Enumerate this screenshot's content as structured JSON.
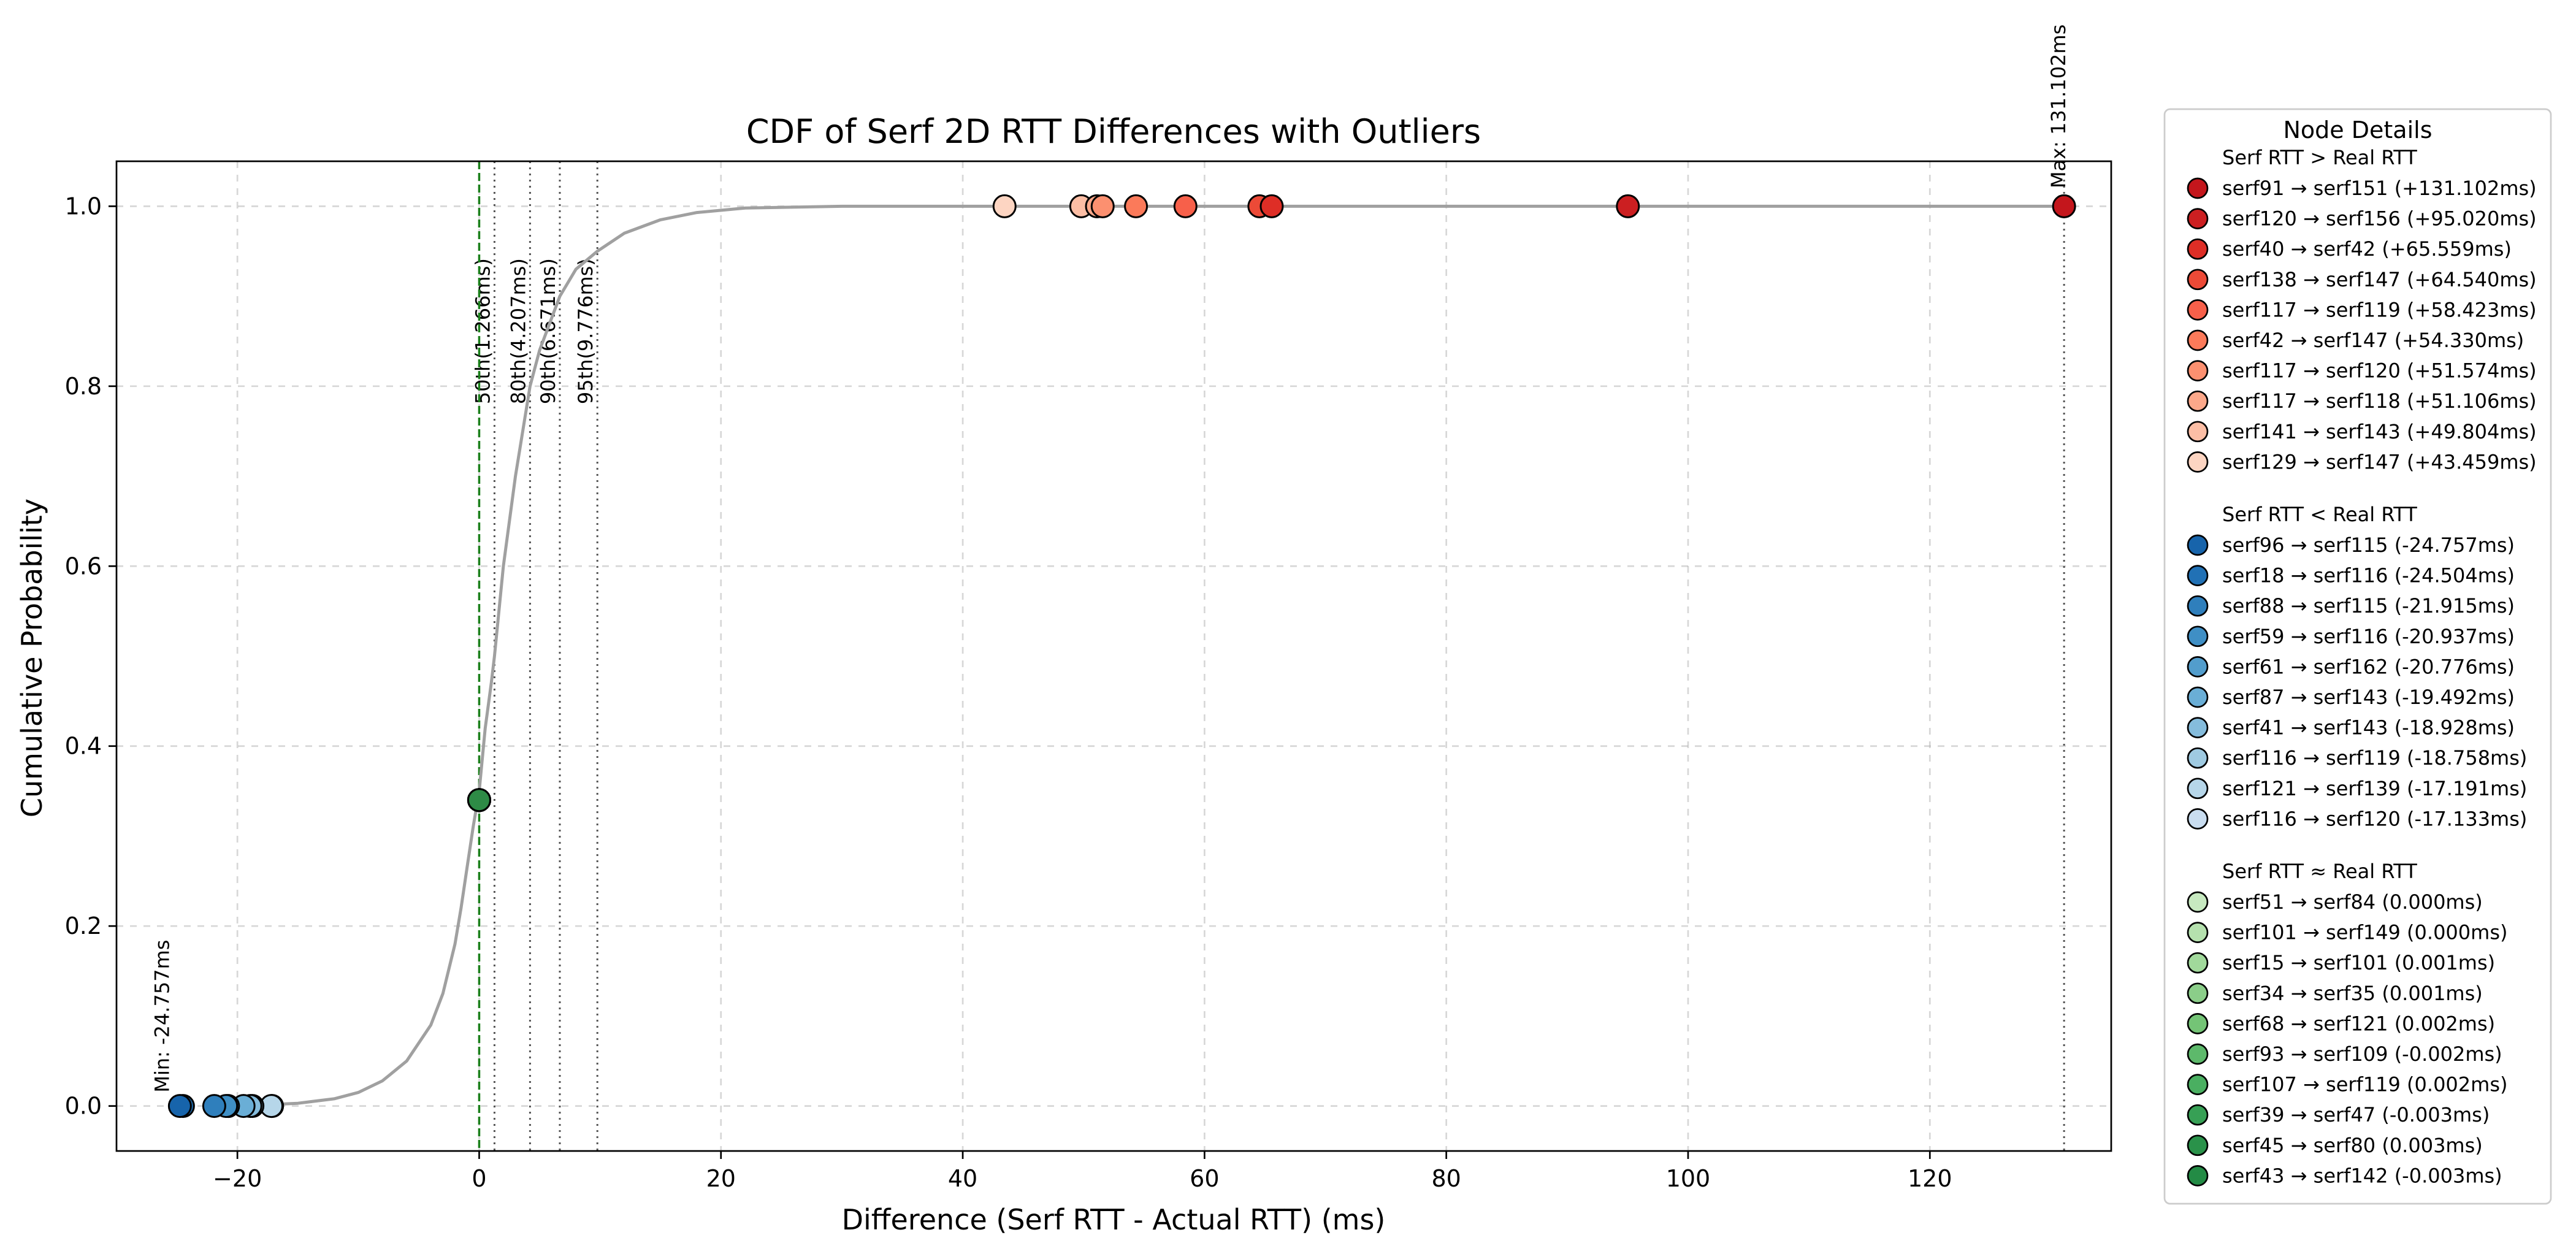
{
  "chart_data": {
    "type": "line",
    "title": "CDF of Serf 2D RTT Differences with Outliers",
    "xlabel": "Difference (Serf RTT - Actual RTT) (ms)",
    "ylabel": "Cumulative Probability",
    "xlim": [
      -30,
      135
    ],
    "ylim": [
      -0.05,
      1.05
    ],
    "xticks": [
      -20,
      0,
      20,
      40,
      60,
      80,
      100,
      120
    ],
    "xtick_labels": [
      "−20",
      "0",
      "20",
      "40",
      "60",
      "80",
      "100",
      "120"
    ],
    "yticks": [
      0.0,
      0.2,
      0.4,
      0.6,
      0.8,
      1.0
    ],
    "ytick_labels": [
      "0.0",
      "0.2",
      "0.4",
      "0.6",
      "0.8",
      "1.0"
    ],
    "grid": true,
    "cdf_color": "#a0a0a0",
    "cdf_curve": {
      "x": [
        -20,
        -15,
        -12,
        -10,
        -8,
        -6,
        -4,
        -3,
        -2,
        -1.5,
        -1,
        -0.5,
        0,
        0.5,
        1,
        1.266,
        2,
        3,
        4.207,
        5,
        6.671,
        8,
        9.776,
        12,
        15,
        18,
        22,
        30,
        131.102
      ],
      "y": [
        0.0,
        0.003,
        0.008,
        0.015,
        0.028,
        0.05,
        0.09,
        0.125,
        0.18,
        0.22,
        0.265,
        0.31,
        0.35,
        0.42,
        0.47,
        0.5,
        0.6,
        0.7,
        0.8,
        0.84,
        0.9,
        0.93,
        0.95,
        0.97,
        0.985,
        0.993,
        0.998,
        1.0,
        1.0
      ]
    },
    "zero_line": {
      "x": 0,
      "color": "#1a7f1a"
    },
    "zero_point": {
      "x": 0,
      "y": 0.34,
      "color": "#2e8b46"
    },
    "percentiles": [
      {
        "x": 1.266,
        "label": "50th(1.266ms)"
      },
      {
        "x": 4.207,
        "label": "80th(4.207ms)"
      },
      {
        "x": 6.671,
        "label": "90th(6.671ms)"
      },
      {
        "x": 9.776,
        "label": "95th(9.776ms)"
      }
    ],
    "min_annotation": {
      "x": -24.757,
      "label": "Min: -24.757ms"
    },
    "max_annotation": {
      "x": 131.102,
      "label": "Max: 131.102ms"
    },
    "series": [
      {
        "name": "Serf RTT > Real RTT",
        "y": 1.0,
        "points": [
          {
            "label": "serf91 → serf151 (+131.102ms)",
            "x": 131.102,
            "color": "#c4161c"
          },
          {
            "label": "serf120 → serf156 (+95.020ms)",
            "x": 95.02,
            "color": "#cc1f21"
          },
          {
            "label": "serf40 → serf42 (+65.559ms)",
            "x": 65.559,
            "color": "#de2e26"
          },
          {
            "label": "serf138 → serf147 (+64.540ms)",
            "x": 64.54,
            "color": "#ec4a37"
          },
          {
            "label": "serf117 → serf119 (+58.423ms)",
            "x": 58.423,
            "color": "#f7604a"
          },
          {
            "label": "serf42 → serf147 (+54.330ms)",
            "x": 54.33,
            "color": "#fb7a5a"
          },
          {
            "label": "serf117 → serf120 (+51.574ms)",
            "x": 51.574,
            "color": "#fc9070"
          },
          {
            "label": "serf117 → serf118 (+51.106ms)",
            "x": 51.106,
            "color": "#fca88a"
          },
          {
            "label": "serf141 → serf143 (+49.804ms)",
            "x": 49.804,
            "color": "#fcbea5"
          },
          {
            "label": "serf129 → serf147 (+43.459ms)",
            "x": 43.459,
            "color": "#fdd5c2"
          }
        ]
      },
      {
        "name": "Serf RTT < Real RTT",
        "y": 0.0,
        "points": [
          {
            "label": "serf96 → serf115 (-24.757ms)",
            "x": -24.757,
            "color": "#1764ab"
          },
          {
            "label": "serf18 → serf116 (-24.504ms)",
            "x": -24.504,
            "color": "#2171b5"
          },
          {
            "label": "serf88 → serf115 (-21.915ms)",
            "x": -21.915,
            "color": "#2f7fbc"
          },
          {
            "label": "serf59 → serf116 (-20.937ms)",
            "x": -20.937,
            "color": "#3f8fc5"
          },
          {
            "label": "serf61 → serf162 (-20.776ms)",
            "x": -20.776,
            "color": "#529dcc"
          },
          {
            "label": "serf87 → serf143 (-19.492ms)",
            "x": -19.492,
            "color": "#6aaed6"
          },
          {
            "label": "serf41 → serf143 (-18.928ms)",
            "x": -18.928,
            "color": "#85bcdc"
          },
          {
            "label": "serf116 → serf119 (-18.758ms)",
            "x": -18.758,
            "color": "#9fcae1"
          },
          {
            "label": "serf121 → serf139 (-17.191ms)",
            "x": -17.191,
            "color": "#b6d6e9"
          },
          {
            "label": "serf116 → serf120 (-17.133ms)",
            "x": -17.133,
            "color": "#c9ddf0"
          }
        ]
      },
      {
        "name": "Serf RTT ≈ Real RTT",
        "y": 0.34,
        "points": [
          {
            "label": "serf51 → serf84 (0.000ms)",
            "x": 0.0,
            "color": "#c7e9c0"
          },
          {
            "label": "serf101 → serf149 (0.000ms)",
            "x": 0.0,
            "color": "#b5e1ae"
          },
          {
            "label": "serf15 → serf101 (0.001ms)",
            "x": 0.001,
            "color": "#a1d99b"
          },
          {
            "label": "serf34 → serf35 (0.001ms)",
            "x": 0.001,
            "color": "#8bce89"
          },
          {
            "label": "serf68 → serf121 (0.002ms)",
            "x": 0.002,
            "color": "#74c476"
          },
          {
            "label": "serf93 → serf109 (-0.002ms)",
            "x": -0.002,
            "color": "#5db96b"
          },
          {
            "label": "serf107 → serf119 (0.002ms)",
            "x": 0.002,
            "color": "#4aaf61"
          },
          {
            "label": "serf39 → serf47 (-0.003ms)",
            "x": -0.003,
            "color": "#37a055"
          },
          {
            "label": "serf45 → serf80 (0.003ms)",
            "x": 0.003,
            "color": "#2a924a"
          },
          {
            "label": "serf43 → serf142 (-0.003ms)",
            "x": -0.003,
            "color": "#238b45"
          }
        ]
      }
    ],
    "legend": {
      "title": "Node Details",
      "placement": "outside-right"
    }
  }
}
